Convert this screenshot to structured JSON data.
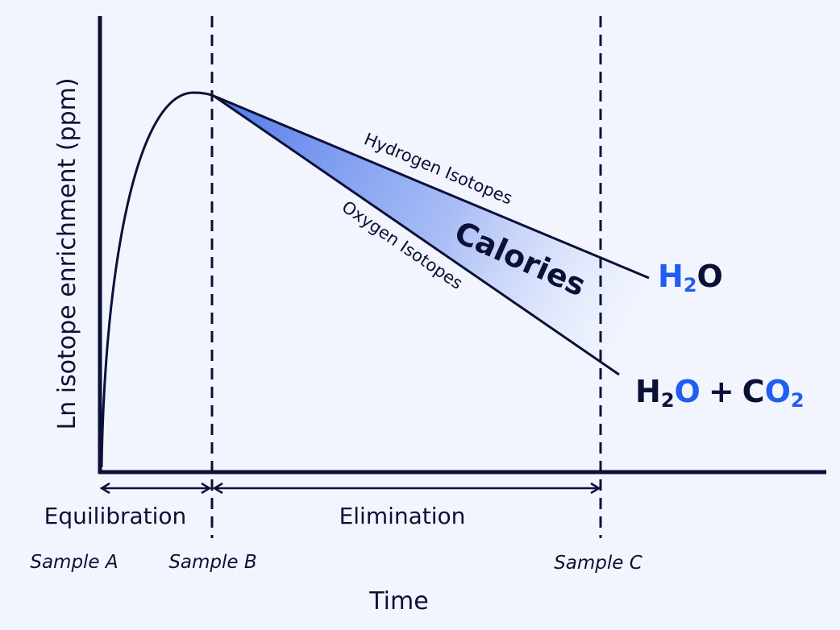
{
  "labels": {
    "y_axis": "Ln isotope enrichment (ppm)",
    "x_axis": "Time",
    "phase_equilibration": "Equilibration",
    "phase_elimination": "Elimination",
    "sample_a": "Sample A",
    "sample_b": "Sample B",
    "sample_c": "Sample C",
    "hydrogen_line": "Hydrogen Isotopes",
    "oxygen_line": "Oxygen Isotopes",
    "area_label": "Calories"
  },
  "formulas": {
    "hydrogen_end": {
      "h": "H",
      "h_sub": "2",
      "o": "O"
    },
    "oxygen_end": {
      "h": "H",
      "h_sub": "2",
      "o": "O",
      "plus": "+",
      "c": "C",
      "o2": "O",
      "o2_sub": "2"
    }
  },
  "colors": {
    "background": "#f2f5fe",
    "ink": "#0b1136",
    "accent_blue": "#1f5ef0",
    "fill_start": "#4f78ea"
  }
}
